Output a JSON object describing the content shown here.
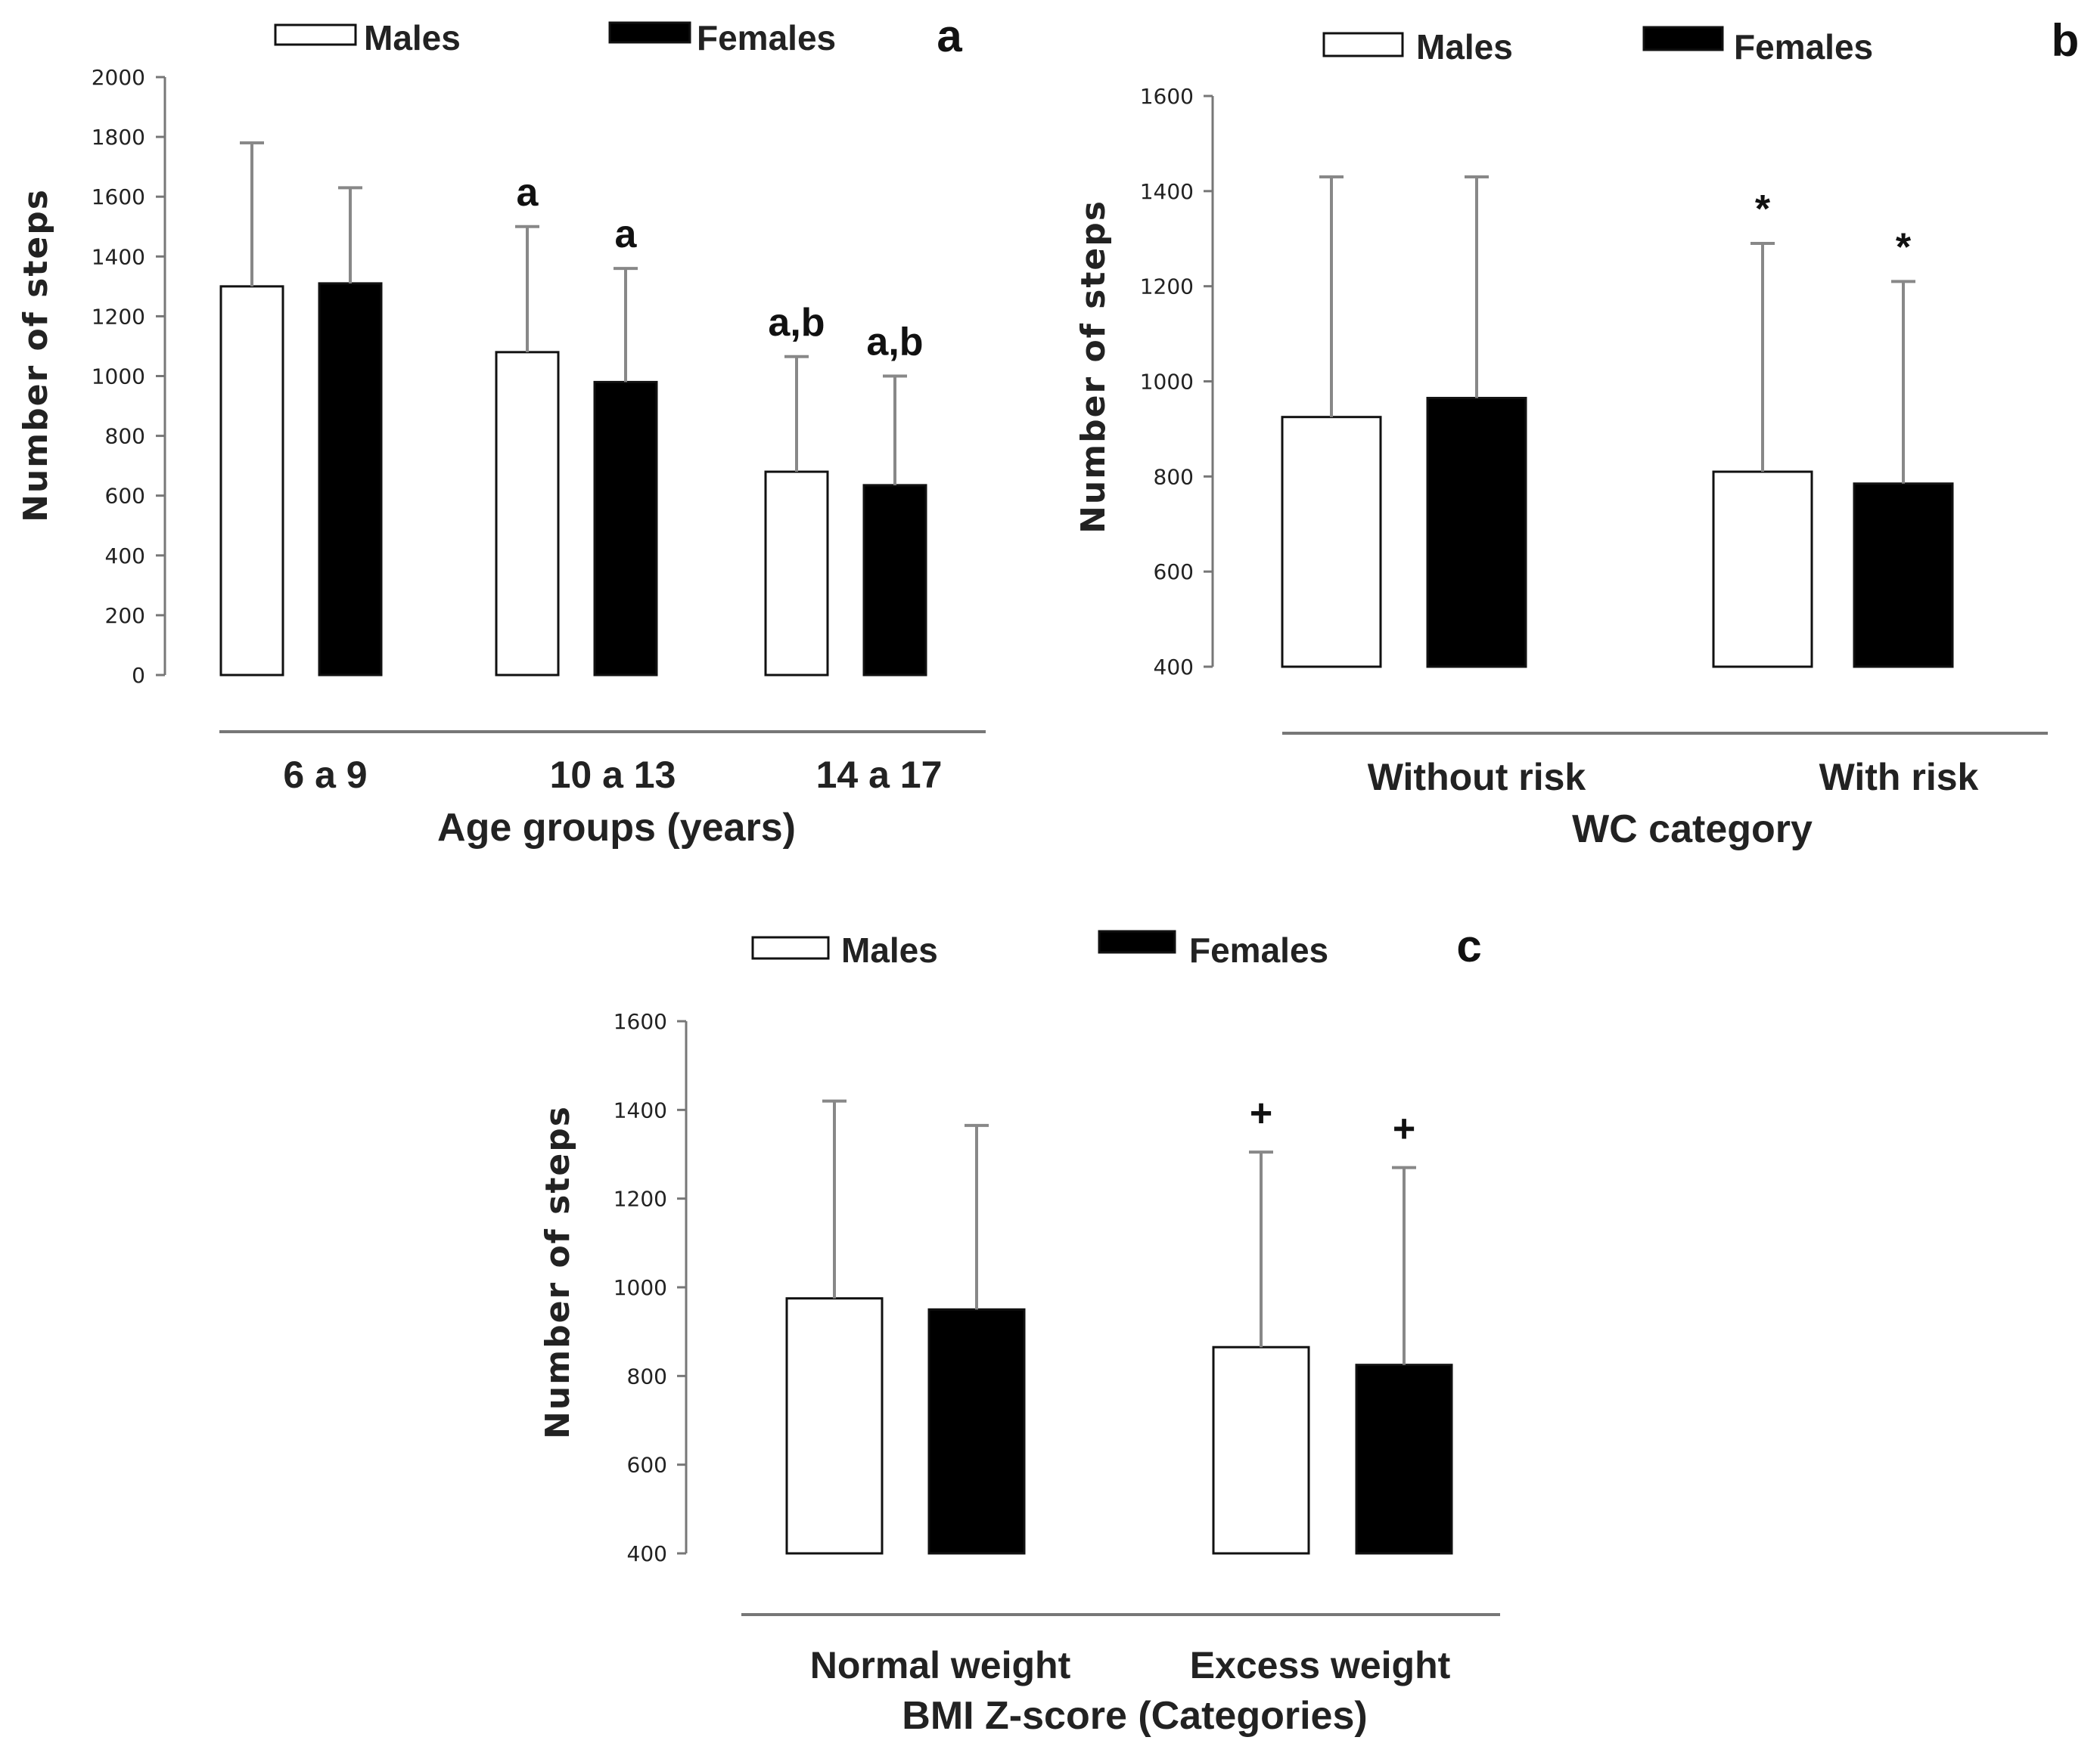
{
  "chart_data": [
    {
      "panel": "a",
      "type": "bar",
      "ylabel": "Number of steps",
      "xlabel": "Age groups (years)",
      "categories": [
        "6 a 9",
        "10 a 13",
        "14 a 17"
      ],
      "ylim": [
        0,
        2000
      ],
      "yticks": [
        0,
        200,
        400,
        600,
        800,
        1000,
        1200,
        1400,
        1600,
        1800,
        2000
      ],
      "series": [
        {
          "name": "Males",
          "fill": "#ffffff",
          "values": [
            1300,
            1080,
            680
          ],
          "errors": [
            480,
            420,
            385
          ],
          "annotations": [
            "",
            "a",
            "a,b"
          ]
        },
        {
          "name": "Females",
          "fill": "#000000",
          "values": [
            1310,
            980,
            635
          ],
          "errors": [
            320,
            380,
            365
          ],
          "annotations": [
            "",
            "a",
            "a,b"
          ]
        }
      ]
    },
    {
      "panel": "b",
      "type": "bar",
      "ylabel": "Number of steps",
      "xlabel": "WC category",
      "categories": [
        "Without risk",
        "With risk"
      ],
      "ylim": [
        400,
        1600
      ],
      "yticks": [
        400,
        600,
        800,
        1000,
        1200,
        1400,
        1600
      ],
      "series": [
        {
          "name": "Males",
          "fill": "#ffffff",
          "values": [
            925,
            810
          ],
          "errors": [
            505,
            480
          ],
          "annotations": [
            "",
            "*"
          ]
        },
        {
          "name": "Females",
          "fill": "#000000",
          "values": [
            965,
            785
          ],
          "errors": [
            465,
            425
          ],
          "annotations": [
            "",
            "*"
          ]
        }
      ]
    },
    {
      "panel": "c",
      "type": "bar",
      "ylabel": "Number of steps",
      "xlabel": "BMI Z-score (Categories)",
      "categories": [
        "Normal weight",
        "Excess weight"
      ],
      "ylim": [
        400,
        1600
      ],
      "yticks": [
        400,
        600,
        800,
        1000,
        1200,
        1400,
        1600
      ],
      "series": [
        {
          "name": "Males",
          "fill": "#ffffff",
          "values": [
            975,
            865
          ],
          "errors": [
            445,
            440
          ],
          "annotations": [
            "",
            "+"
          ]
        },
        {
          "name": "Females",
          "fill": "#000000",
          "values": [
            950,
            825
          ],
          "errors": [
            415,
            445
          ],
          "annotations": [
            "",
            "+"
          ]
        }
      ]
    }
  ]
}
